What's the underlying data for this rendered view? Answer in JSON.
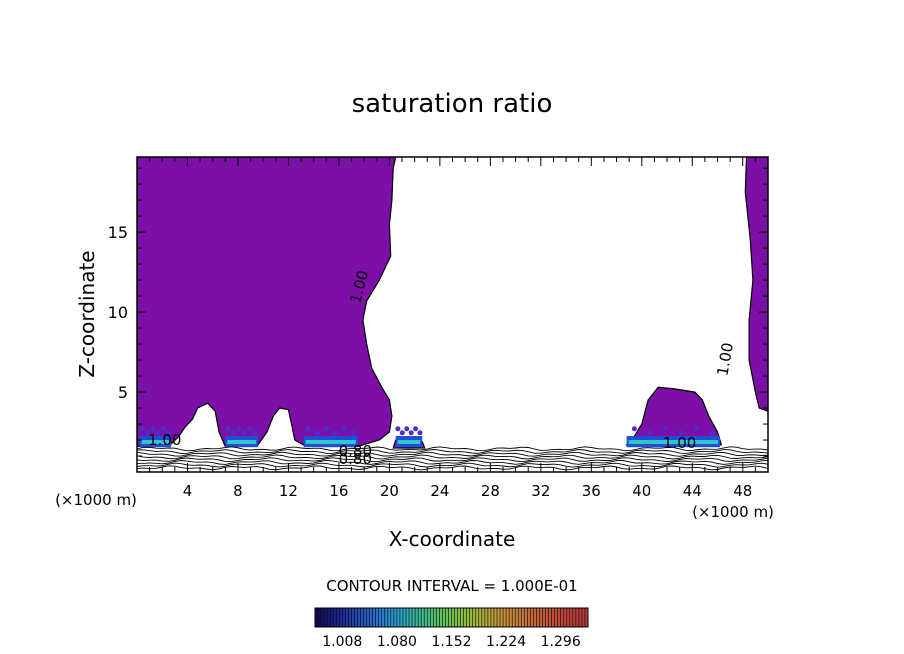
{
  "chart_data": {
    "type": "contour",
    "title": "saturation ratio",
    "xlabel": "X-coordinate",
    "ylabel": "Z-coordinate",
    "x_unit_left": "(×1000 m)",
    "x_unit_right": "(×1000 m)",
    "xlim": [
      0,
      50
    ],
    "ylim": [
      0,
      19.7
    ],
    "x_ticks": [
      4,
      8,
      12,
      16,
      20,
      24,
      28,
      32,
      36,
      40,
      44,
      48
    ],
    "y_ticks": [
      5,
      10,
      15
    ],
    "contour_interval_label": "CONTOUR INTERVAL = 1.000E-01",
    "contour_labels": [
      {
        "text": "1.00",
        "x": 18.0,
        "z": 11.5,
        "angle": -75
      },
      {
        "text": "1.00",
        "x": 47.0,
        "z": 7.0,
        "angle": -80
      },
      {
        "text": "1.00",
        "x": 2.2,
        "z": 1.7,
        "angle": 0
      },
      {
        "text": "1.00",
        "x": 43.0,
        "z": 1.5,
        "angle": 0
      },
      {
        "text": "0.80",
        "x": 17.3,
        "z": 1.0,
        "angle": 0
      },
      {
        "text": "0.80",
        "x": 17.3,
        "z": 0.5,
        "angle": 0
      }
    ],
    "supersaturated_regions": [
      {
        "name": "left-cloud",
        "outline": [
          [
            0,
            19.7
          ],
          [
            20.5,
            19.7
          ],
          [
            20.3,
            19
          ],
          [
            20.2,
            17
          ],
          [
            20.0,
            15.5
          ],
          [
            20.1,
            13.5
          ],
          [
            19.2,
            12.0
          ],
          [
            18.2,
            10.7
          ],
          [
            17.9,
            9.5
          ],
          [
            18.2,
            8.0
          ],
          [
            18.6,
            6.5
          ],
          [
            19.4,
            5.3
          ],
          [
            20.0,
            4.5
          ],
          [
            20.2,
            3.5
          ],
          [
            20.0,
            2.5
          ],
          [
            19.2,
            2.0
          ],
          [
            17.5,
            1.6
          ],
          [
            15.0,
            1.6
          ],
          [
            13.4,
            1.6
          ],
          [
            12.5,
            2.0
          ],
          [
            12.3,
            2.8
          ],
          [
            12.0,
            3.9
          ],
          [
            11.3,
            4.0
          ],
          [
            10.8,
            3.5
          ],
          [
            10.3,
            2.5
          ],
          [
            9.5,
            1.6
          ],
          [
            7.0,
            1.6
          ],
          [
            6.5,
            2.5
          ],
          [
            6.2,
            3.8
          ],
          [
            5.6,
            4.3
          ],
          [
            4.8,
            4.0
          ],
          [
            4.4,
            3.3
          ],
          [
            3.8,
            2.8
          ],
          [
            3.3,
            2.2
          ],
          [
            2.5,
            1.6
          ],
          [
            0,
            1.6
          ]
        ]
      },
      {
        "name": "right-cloud",
        "outline": [
          [
            48.3,
            19.7
          ],
          [
            50,
            19.7
          ],
          [
            50,
            3.8
          ],
          [
            49.3,
            4.0
          ],
          [
            49.0,
            5.0
          ],
          [
            48.5,
            7.0
          ],
          [
            48.5,
            9.5
          ],
          [
            48.8,
            12.0
          ],
          [
            48.6,
            14.5
          ],
          [
            48.2,
            17.5
          ]
        ]
      },
      {
        "name": "right-low-cloud",
        "outline": [
          [
            38.8,
            1.7
          ],
          [
            46.3,
            1.7
          ],
          [
            46.0,
            2.5
          ],
          [
            45.3,
            3.5
          ],
          [
            44.8,
            4.5
          ],
          [
            44.2,
            5.0
          ],
          [
            42.6,
            5.2
          ],
          [
            41.3,
            5.3
          ],
          [
            40.5,
            4.5
          ],
          [
            40.0,
            3.0
          ],
          [
            39.3,
            2.1
          ]
        ]
      },
      {
        "name": "small-cell",
        "outline": [
          [
            20.3,
            1.5
          ],
          [
            22.8,
            1.5
          ],
          [
            22.6,
            1.9
          ],
          [
            21.3,
            2.1
          ],
          [
            20.5,
            2.0
          ]
        ]
      }
    ],
    "colorbar": {
      "ticks": [
        1.008,
        1.08,
        1.152,
        1.224,
        1.296
      ],
      "tick_labels": [
        "1.008",
        "1.080",
        "1.152",
        "1.224",
        "1.296"
      ],
      "range": [
        0.972,
        1.332
      ],
      "colors": [
        "#140a55",
        "#1f2f9a",
        "#2a66c9",
        "#2f9ed0",
        "#3fbf8a",
        "#74c44a",
        "#a8b43c",
        "#c7913b",
        "#c76a3c",
        "#c2483f",
        "#b53a3a"
      ]
    },
    "fill_color": "#7b0fa8",
    "band_color": "#1f4fd8",
    "band_highlight_color": "#36e3c8"
  }
}
